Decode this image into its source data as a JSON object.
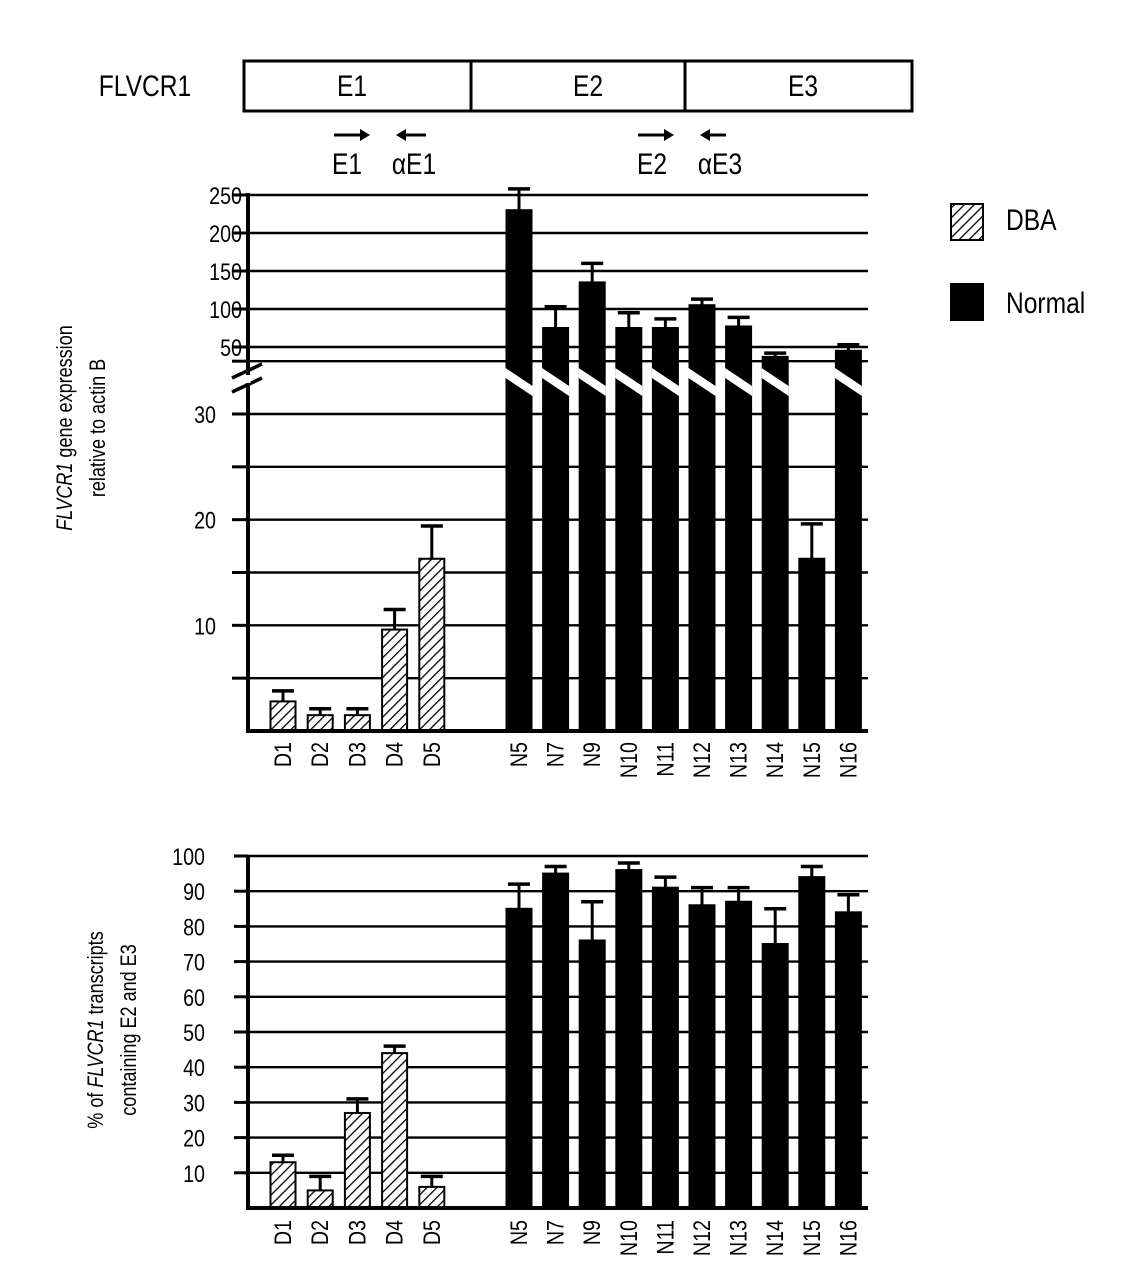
{
  "gene_diagram": {
    "gene_label": "FLVCR1",
    "exons": [
      "E1",
      "E2",
      "E3"
    ],
    "primers": [
      {
        "name": "E1",
        "direction": "forward"
      },
      {
        "name": "αE1",
        "direction": "reverse"
      },
      {
        "name": "E2",
        "direction": "forward"
      },
      {
        "name": "αE3",
        "direction": "reverse"
      }
    ]
  },
  "legend": {
    "items": [
      {
        "label": "DBA",
        "pattern": "hatched"
      },
      {
        "label": "Normal",
        "pattern": "solid"
      }
    ]
  },
  "colors": {
    "bar": "#000000",
    "background": "#ffffff",
    "grid": "#000000"
  },
  "chart_data": [
    {
      "type": "bar",
      "title": "",
      "ylabel_italic": "FLVCR1",
      "ylabel_rest": " gene expression",
      "ylabel_line2": "relative to actin B",
      "xlabel": "",
      "axis_break": true,
      "ylim_lower": [
        0,
        35
      ],
      "ylim_upper": [
        50,
        250
      ],
      "yticks_lower": [
        10,
        20,
        30
      ],
      "yticks_upper": [
        50,
        100,
        150,
        200,
        250
      ],
      "grid": true,
      "groups": [
        {
          "name": "DBA",
          "pattern": "hatched",
          "categories": [
            "D1",
            "D2",
            "D3",
            "D4",
            "D5"
          ],
          "values": [
            2.8,
            1.5,
            1.5,
            9.6,
            16.3
          ],
          "errors": [
            1.0,
            0.6,
            0.6,
            1.9,
            3.1
          ]
        },
        {
          "name": "Normal",
          "pattern": "solid",
          "categories": [
            "N5",
            "N7",
            "N9",
            "N10",
            "N11",
            "N12",
            "N13",
            "N14",
            "N15",
            "N16"
          ],
          "values": [
            230,
            75,
            135,
            75,
            75,
            105,
            77,
            37,
            16.3,
            45
          ],
          "errors": [
            28,
            28,
            25,
            20,
            12,
            8,
            12,
            5,
            3.3,
            8
          ]
        }
      ]
    },
    {
      "type": "bar",
      "title": "",
      "ylabel_line1_pre": "% of ",
      "ylabel_italic": "FLVCR1",
      "ylabel_line1_post": " transcripts",
      "ylabel_line2": "containing E2 and  E3",
      "xlabel": "",
      "ylim": [
        0,
        100
      ],
      "yticks": [
        10,
        20,
        30,
        40,
        50,
        60,
        70,
        80,
        90,
        100
      ],
      "grid": true,
      "groups": [
        {
          "name": "DBA",
          "pattern": "hatched",
          "categories": [
            "D1",
            "D2",
            "D3",
            "D4",
            "D5"
          ],
          "values": [
            13,
            5,
            27,
            44,
            6
          ],
          "errors": [
            2,
            4,
            4,
            2,
            3
          ]
        },
        {
          "name": "Normal",
          "pattern": "solid",
          "categories": [
            "N5",
            "N7",
            "N9",
            "N10",
            "N11",
            "N12",
            "N13",
            "N14",
            "N15",
            "N16"
          ],
          "values": [
            85,
            95,
            76,
            96,
            91,
            86,
            87,
            75,
            94,
            84
          ],
          "errors": [
            7,
            2,
            11,
            2,
            3,
            5,
            4,
            10,
            3,
            5
          ]
        }
      ]
    }
  ]
}
